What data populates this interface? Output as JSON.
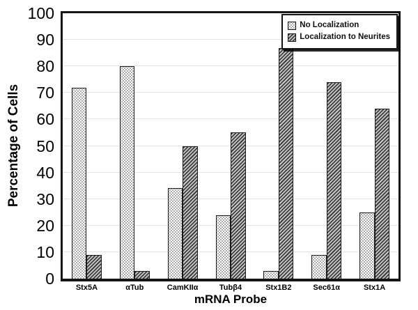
{
  "chart_data": {
    "type": "bar",
    "title": "",
    "xlabel": "mRNA Probe",
    "ylabel": "Percentage of Cells",
    "ylim": [
      0,
      100
    ],
    "ytick_step": 10,
    "yticks": [
      0,
      10,
      20,
      30,
      40,
      50,
      60,
      70,
      80,
      90,
      100
    ],
    "grid": "horizontal-light",
    "legend_position": "top-right",
    "categories": [
      "Stx5A",
      "αTub",
      "CamKIIα",
      "Tubβ4",
      "Stx1B2",
      "Sec61α",
      "Stx1A"
    ],
    "series": [
      {
        "name": "No Localization",
        "pattern": "fine-dots",
        "values": [
          72,
          80,
          34,
          24,
          3,
          9,
          25
        ]
      },
      {
        "name": "Localization to Neurites",
        "pattern": "diagonal-hatch",
        "values": [
          9,
          3,
          50,
          55,
          87,
          74,
          64
        ]
      }
    ],
    "colors": {
      "background": "#ffffff",
      "frame": "#151515",
      "gridline": "#e3e3e3",
      "dot_pattern": "#8f8f8f",
      "hatch_dark": "#3e3e3e",
      "hatch_light": "#c9c9c9",
      "bar_border": "#1a1a1a"
    }
  }
}
